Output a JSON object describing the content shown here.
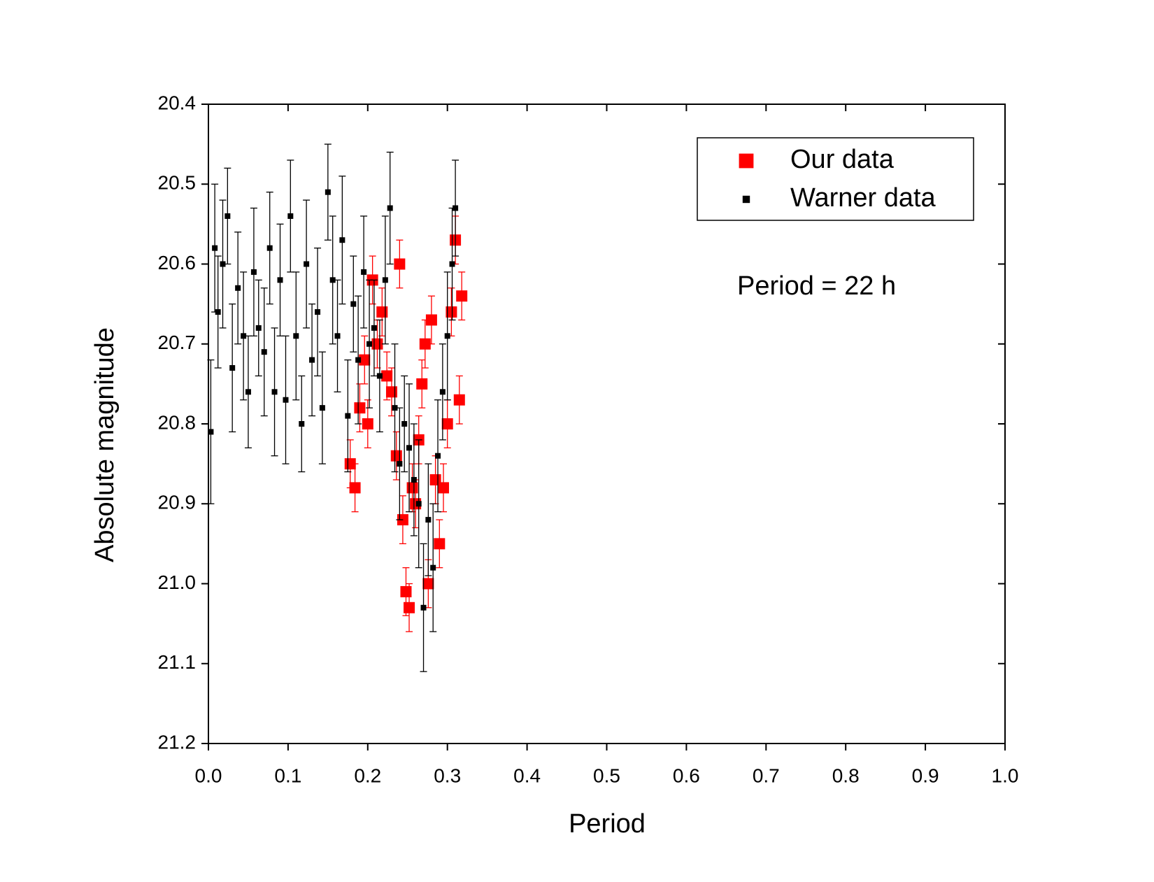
{
  "chart_data": {
    "type": "scatter",
    "xlabel": "Period",
    "ylabel": "Absolute magnitude",
    "annotation": "Period = 22 h",
    "xlim": [
      0,
      1
    ],
    "ylim": [
      20.4,
      21.2
    ],
    "y_inverted": true,
    "xticks": [
      {
        "value": 0,
        "label": "0.0"
      },
      0.1,
      0.2,
      0.3,
      0.4,
      0.5,
      0.6,
      0.7,
      0.8,
      0.9,
      {
        "value": 1,
        "label": "1.0"
      }
    ],
    "yticks": [
      20.4,
      20.5,
      20.6,
      20.7,
      20.8,
      20.9,
      {
        "value": 21,
        "label": "21.0"
      },
      21.1,
      21.2
    ],
    "legend": "upper right",
    "series": [
      {
        "name": "Our data",
        "color": "#ff0000",
        "marker_size": 16,
        "x": [
          0.178,
          0.184,
          0.19,
          0.196,
          0.2,
          0.206,
          0.212,
          0.218,
          0.224,
          0.23,
          0.236,
          0.24,
          0.244,
          0.248,
          0.252,
          0.256,
          0.26,
          0.264,
          0.268,
          0.272,
          0.276,
          0.28,
          0.285,
          0.29,
          0.295,
          0.3,
          0.305,
          0.31,
          0.315,
          0.318
        ],
        "values": [
          20.85,
          20.88,
          20.78,
          20.72,
          20.8,
          20.62,
          20.7,
          20.66,
          20.74,
          20.76,
          20.84,
          20.6,
          20.92,
          21.01,
          21.03,
          20.88,
          20.9,
          20.82,
          20.75,
          20.7,
          21.0,
          20.67,
          20.87,
          20.95,
          20.88,
          20.8,
          20.66,
          20.57,
          20.77,
          20.64
        ],
        "errors": [
          0.03,
          0.03,
          0.03,
          0.03,
          0.03,
          0.03,
          0.03,
          0.03,
          0.03,
          0.03,
          0.03,
          0.03,
          0.03,
          0.03,
          0.03,
          0.03,
          0.03,
          0.03,
          0.03,
          0.03,
          0.03,
          0.03,
          0.03,
          0.03,
          0.03,
          0.03,
          0.03,
          0.03,
          0.03,
          0.03
        ]
      },
      {
        "name": "Warner data",
        "color": "#000000",
        "marker_size": 8,
        "x": [
          0.003,
          0.008,
          0.012,
          0.018,
          0.024,
          0.03,
          0.037,
          0.044,
          0.05,
          0.057,
          0.063,
          0.07,
          0.077,
          0.083,
          0.09,
          0.097,
          0.103,
          0.11,
          0.117,
          0.123,
          0.13,
          0.137,
          0.143,
          0.15,
          0.156,
          0.162,
          0.168,
          0.175,
          0.182,
          0.188,
          0.195,
          0.202,
          0.208,
          0.215,
          0.222,
          0.228,
          0.234,
          0.24,
          0.246,
          0.252,
          0.258,
          0.264,
          0.27,
          0.276,
          0.282,
          0.288,
          0.294,
          0.3,
          0.306,
          0.31
        ],
        "values": [
          20.81,
          20.58,
          20.66,
          20.6,
          20.54,
          20.73,
          20.63,
          20.69,
          20.76,
          20.61,
          20.68,
          20.71,
          20.58,
          20.76,
          20.62,
          20.77,
          20.54,
          20.69,
          20.8,
          20.6,
          20.72,
          20.66,
          20.78,
          20.51,
          20.62,
          20.69,
          20.57,
          20.79,
          20.65,
          20.72,
          20.61,
          20.7,
          20.68,
          20.74,
          20.62,
          20.53,
          20.78,
          20.85,
          20.8,
          20.83,
          20.87,
          20.9,
          21.03,
          20.92,
          20.98,
          20.84,
          20.76,
          20.69,
          20.6,
          20.53
        ],
        "errors": [
          0.09,
          0.08,
          0.07,
          0.08,
          0.06,
          0.08,
          0.07,
          0.08,
          0.07,
          0.08,
          0.06,
          0.08,
          0.07,
          0.08,
          0.07,
          0.08,
          0.07,
          0.08,
          0.06,
          0.08,
          0.07,
          0.08,
          0.07,
          0.06,
          0.08,
          0.07,
          0.08,
          0.07,
          0.06,
          0.08,
          0.07,
          0.08,
          0.06,
          0.07,
          0.08,
          0.07,
          0.08,
          0.07,
          0.06,
          0.08,
          0.07,
          0.08,
          0.08,
          0.07,
          0.08,
          0.07,
          0.06,
          0.08,
          0.07,
          0.06
        ]
      }
    ]
  }
}
